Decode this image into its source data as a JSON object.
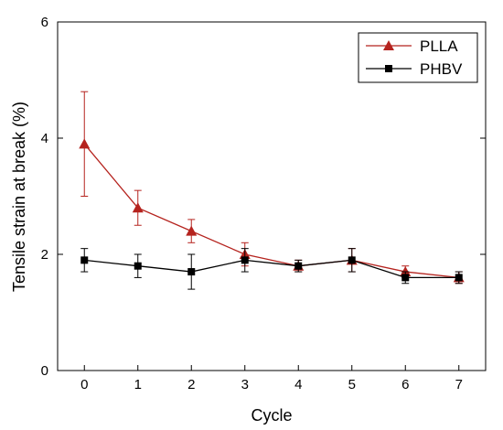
{
  "chart_data": {
    "type": "line",
    "title": "",
    "xlabel": "Cycle",
    "ylabel": "Tensile strain at break (%)",
    "x": [
      0,
      1,
      2,
      3,
      4,
      5,
      6,
      7
    ],
    "xlim": [
      -0.5,
      7.5
    ],
    "ylim": [
      0,
      6
    ],
    "x_ticks": [
      "0",
      "1",
      "2",
      "3",
      "4",
      "5",
      "6",
      "7"
    ],
    "y_ticks": [
      "0",
      "2",
      "4",
      "6"
    ],
    "grid": false,
    "legend_position": "top-right",
    "series": [
      {
        "name": "PLLA",
        "color": "#b5231e",
        "marker": "triangle",
        "values": [
          3.9,
          2.8,
          2.4,
          2.0,
          1.8,
          1.9,
          1.7,
          1.6
        ],
        "errors": [
          0.9,
          0.3,
          0.2,
          0.2,
          0.1,
          0.2,
          0.1,
          0.1
        ]
      },
      {
        "name": "PHBV",
        "color": "#000000",
        "marker": "square",
        "values": [
          1.9,
          1.8,
          1.7,
          1.9,
          1.8,
          1.9,
          1.6,
          1.6
        ],
        "errors": [
          0.2,
          0.2,
          0.3,
          0.2,
          0.1,
          0.2,
          0.1,
          0.1
        ]
      }
    ]
  }
}
